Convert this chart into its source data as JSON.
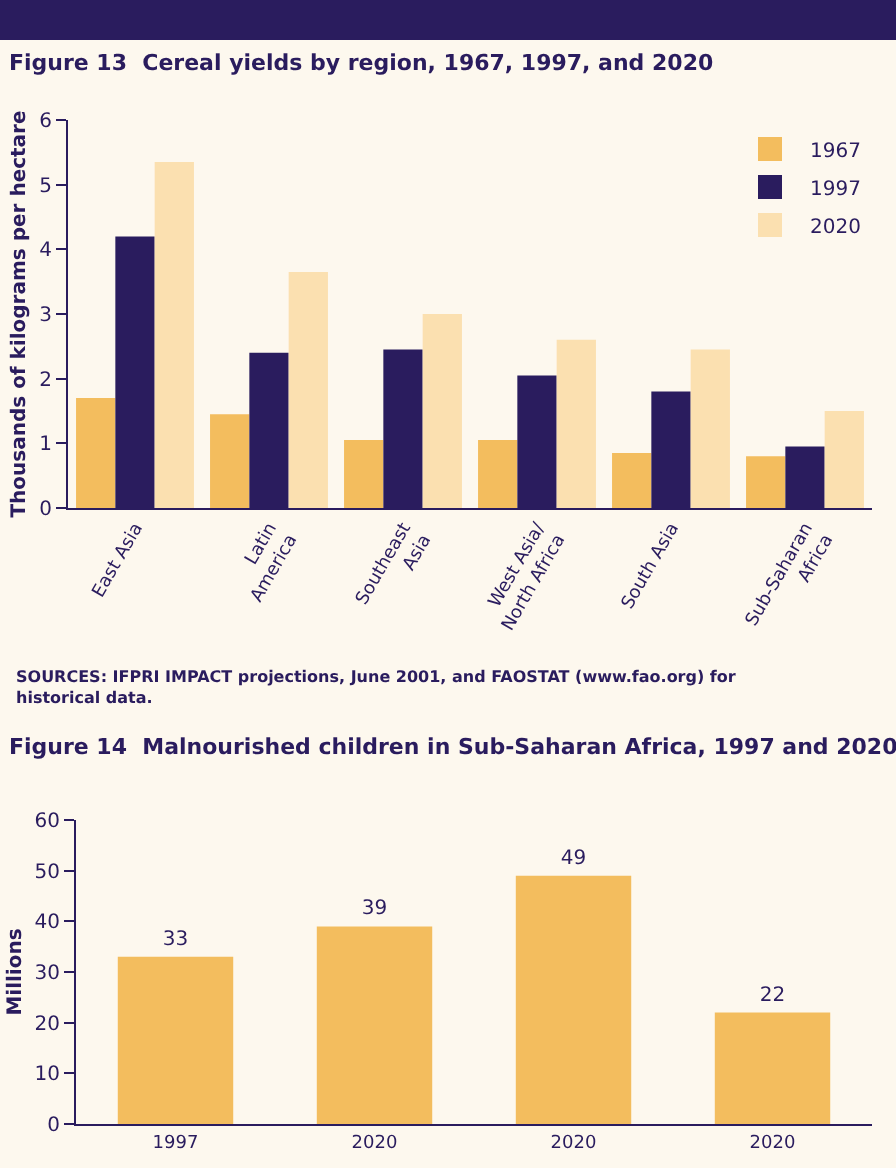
{
  "chart_data": [
    {
      "type": "bar",
      "title": "Figure 13  Cereal yields by region, 1967, 1997, and 2020",
      "ylabel": "Thousands of kilograms per hectare",
      "categories": [
        "East Asia",
        "Latin\nAmerica",
        "Southeast\nAsia",
        "West Asia/\nNorth Africa",
        "South Asia",
        "Sub-Saharan\nAfrica"
      ],
      "series": [
        {
          "name": "1967",
          "color": "#f3bd5e",
          "values": [
            1.7,
            1.45,
            1.05,
            1.05,
            0.85,
            0.8
          ]
        },
        {
          "name": "1997",
          "color": "#2a1c5e",
          "values": [
            4.2,
            2.4,
            2.45,
            2.05,
            1.8,
            0.95
          ]
        },
        {
          "name": "2020",
          "color": "#fbe0b0",
          "values": [
            5.35,
            3.65,
            3.0,
            2.6,
            2.45,
            1.5
          ]
        }
      ],
      "ylim": [
        0,
        6
      ],
      "yticks": [
        0,
        1,
        2,
        3,
        4,
        5,
        6
      ],
      "grid": false,
      "legend": "top right",
      "annotations": [
        "SOURCES: IFPRI IMPACT projections, June 2001, and FAOSTAT (www.fao.org) for historical data."
      ]
    },
    {
      "type": "bar",
      "title": "Figure 14  Malnourished children in Sub-Saharan Africa, 1997 and 2020",
      "ylabel": "Millions",
      "categories": [
        "1997",
        "2020",
        "2020",
        "2020"
      ],
      "series": [
        {
          "color": "#f3bd5e",
          "values": [
            33,
            39,
            49,
            22
          ]
        }
      ],
      "data_labels": true,
      "ylim": [
        0,
        60
      ],
      "yticks": [
        0,
        10,
        20,
        30,
        40,
        50,
        60
      ],
      "grid": false,
      "legend": false
    }
  ]
}
